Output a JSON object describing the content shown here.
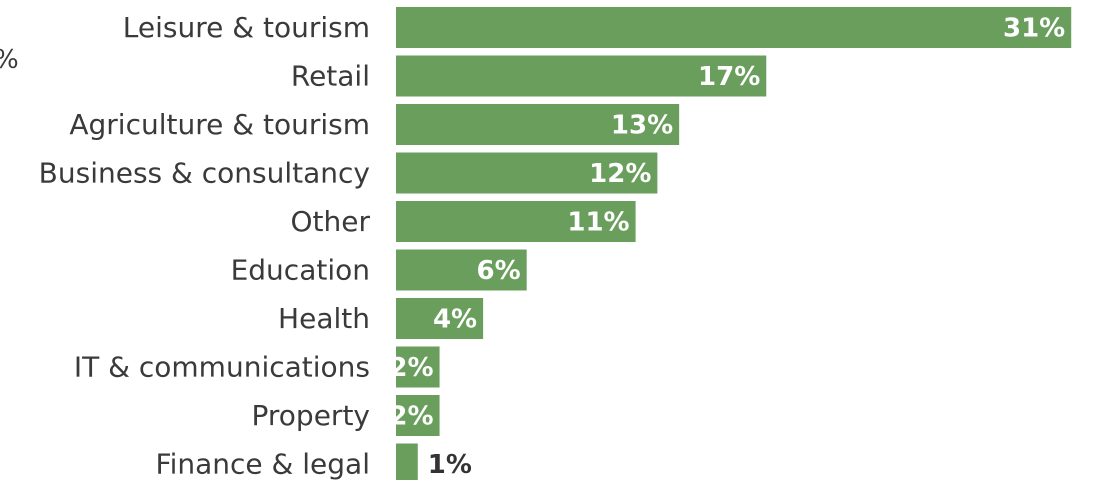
{
  "chart_data": {
    "type": "bar",
    "orientation": "horizontal",
    "categories": [
      "Leisure & tourism",
      "Retail",
      "Agriculture & tourism",
      "Business & consultancy",
      "Other",
      "Education",
      "Health",
      "IT & communications",
      "Property",
      "Finance & legal"
    ],
    "values": [
      31,
      17,
      13,
      12,
      11,
      6,
      4,
      2,
      2,
      1
    ],
    "value_labels": [
      "31%",
      "17%",
      "13%",
      "12%",
      "11%",
      "6%",
      "4%",
      "2%",
      "2%",
      "1%"
    ],
    "value_unit": "%",
    "xlim": [
      0,
      32
    ],
    "bar_color": "#6a9e5d",
    "label_inside_color": "#ffffff",
    "label_outside_color": "#333333",
    "category_label_color": "#3a3a3a",
    "grid": false,
    "axes_visible": false,
    "left_edge_glyph": "%"
  }
}
